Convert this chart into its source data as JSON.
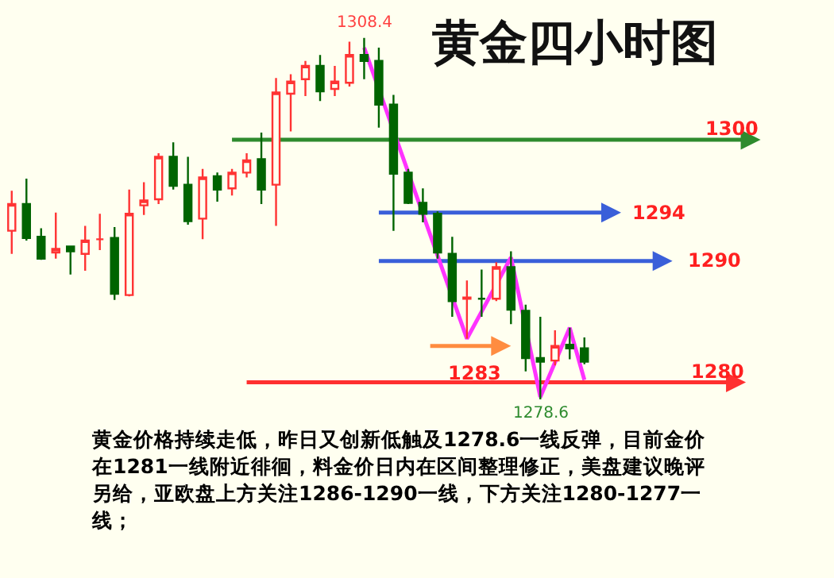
{
  "chart_data": {
    "type": "candlestick",
    "title": "黄金四小时图",
    "categories": [
      null,
      null,
      null,
      null,
      null,
      null,
      null,
      null,
      null,
      null,
      null,
      null,
      null,
      null,
      null,
      null,
      null,
      null,
      null,
      null,
      null,
      null,
      null,
      null,
      null,
      null,
      null,
      null,
      null,
      null,
      null,
      null,
      null,
      null,
      null,
      null,
      null,
      null,
      null,
      null
    ],
    "ohlc": [
      [
        1292.5,
        1295.8,
        1290.6,
        1294.7
      ],
      [
        1294.7,
        1296.8,
        1291.7,
        1291.9
      ],
      [
        1292.0,
        1292.7,
        1290.1,
        1290.2
      ],
      [
        1290.7,
        1294.0,
        1290.2,
        1291.0
      ],
      [
        1291.2,
        1291.2,
        1288.9,
        1290.8
      ],
      [
        1290.6,
        1292.9,
        1289.2,
        1291.7
      ],
      [
        1291.8,
        1293.9,
        1290.9,
        1291.8
      ],
      [
        1291.9,
        1292.8,
        1286.8,
        1287.3
      ],
      [
        1287.2,
        1295.9,
        1287.1,
        1293.9
      ],
      [
        1294.6,
        1296.5,
        1293.8,
        1295.0
      ],
      [
        1295.1,
        1298.9,
        1294.7,
        1298.6
      ],
      [
        1298.6,
        1299.8,
        1295.9,
        1296.2
      ],
      [
        1296.3,
        1298.6,
        1293.0,
        1293.3
      ],
      [
        1293.5,
        1297.6,
        1291.8,
        1296.9
      ],
      [
        1297.0,
        1297.3,
        1294.9,
        1295.9
      ],
      [
        1296.0,
        1297.6,
        1295.4,
        1297.3
      ],
      [
        1297.3,
        1298.9,
        1296.9,
        1298.3
      ],
      [
        1298.4,
        1300.6,
        1294.7,
        1295.9
      ],
      [
        1296.3,
        1305.1,
        1292.9,
        1303.9
      ],
      [
        1303.8,
        1305.4,
        1300.7,
        1304.8
      ],
      [
        1305.0,
        1306.5,
        1303.6,
        1306.1
      ],
      [
        1306.1,
        1307.0,
        1303.2,
        1304.0
      ],
      [
        1304.2,
        1306.1,
        1303.6,
        1304.8
      ],
      [
        1304.7,
        1308.1,
        1304.4,
        1307.0
      ],
      [
        1307.0,
        1308.4,
        1305.0,
        1306.5
      ],
      [
        1306.5,
        1307.6,
        1301.0,
        1302.9
      ],
      [
        1302.9,
        1303.7,
        1292.5,
        1297.2
      ],
      [
        1297.3,
        1297.6,
        1294.7,
        1294.8
      ],
      [
        1294.8,
        1296.0,
        1293.2,
        1293.9
      ],
      [
        1293.9,
        1294.1,
        1290.2,
        1290.7
      ],
      [
        1290.6,
        1292.0,
        1285.4,
        1286.7
      ],
      [
        1286.9,
        1288.4,
        1283.6,
        1287.0
      ],
      [
        1286.9,
        1289.3,
        1285.4,
        1286.9
      ],
      [
        1286.9,
        1289.9,
        1286.7,
        1289.5
      ],
      [
        1289.5,
        1290.8,
        1284.8,
        1286.0
      ],
      [
        1285.9,
        1286.4,
        1280.9,
        1282.0
      ],
      [
        1282.0,
        1285.4,
        1278.6,
        1281.7
      ],
      [
        1281.8,
        1284.3,
        1281.4,
        1283.0
      ],
      [
        1283.1,
        1284.5,
        1281.9,
        1282.8
      ],
      [
        1282.8,
        1283.7,
        1281.5,
        1281.7
      ]
    ],
    "series": [
      {
        "type": "line",
        "color": "#ff33ff",
        "values": [
          null,
          null,
          null,
          null,
          null,
          null,
          null,
          null,
          null,
          null,
          null,
          null,
          null,
          null,
          null,
          null,
          null,
          null,
          null,
          null,
          null,
          null,
          null,
          null,
          1307.6,
          null,
          null,
          null,
          null,
          null,
          null,
          1283.6,
          null,
          null,
          1290.3,
          null,
          1278.8,
          null,
          1284.5,
          1280.2
        ]
      }
    ],
    "ref_lines": [
      {
        "axis": "y",
        "value": 1300,
        "label": "1300",
        "color": "#2e8b2e"
      },
      {
        "axis": "y",
        "value": 1294,
        "label": "1294",
        "color": "#3a5fd9"
      },
      {
        "axis": "y",
        "value": 1290,
        "label": "1290",
        "color": "#3a5fd9"
      },
      {
        "axis": "y",
        "value": 1283,
        "label": "1283",
        "color": "#ff8c40"
      },
      {
        "axis": "y",
        "value": 1280,
        "label": "1280",
        "color": "#ff3030"
      }
    ],
    "annotations": [
      {
        "text": "1308.4",
        "y": 1308.4
      },
      {
        "text": "1278.6",
        "y": 1278.6
      },
      "黄金价格持续走低，昨日又创新低触及1278.6一线反弹，目前金价在1281一线附近徘徊，料金价日内在区间整理修正，美盘建议晚评另给，亚欧盘上方关注1286-1290一线，下方关注1280-1277一线；"
    ],
    "grid": false
  }
}
